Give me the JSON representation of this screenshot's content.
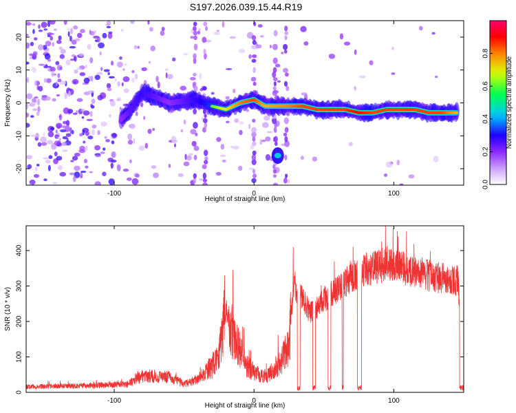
{
  "title": "S197.2026.039.15.44.R19",
  "colorbar": {
    "label": "Normalized spectral amplitude",
    "ticks": [
      0.0,
      0.2,
      0.4,
      0.6,
      0.8
    ],
    "tick_labels": [
      "0.0",
      "0.2",
      "0.4",
      "0.6",
      "0.8"
    ],
    "colors": [
      "#ffffff",
      "#cc99ff",
      "#8800ff",
      "#0000ff",
      "#00ffff",
      "#00ff00",
      "#ffff00",
      "#ff8800",
      "#ff0000",
      "#ff0066"
    ]
  },
  "chart_data": [
    {
      "type": "heatmap",
      "name": "spectrogram",
      "xlabel": "Height of straight line (km)",
      "ylabel": "Frequency (Hz)",
      "xlim": [
        -163,
        150
      ],
      "ylim": [
        -25,
        25
      ],
      "xticks": [
        -100,
        0,
        100
      ],
      "xtick_labels": [
        "-100",
        "0",
        "100"
      ],
      "yticks": [
        -20,
        -10,
        0,
        10,
        20
      ],
      "ytick_labels": [
        "-20",
        "-10",
        "0",
        "10",
        "20"
      ],
      "ridge": {
        "description": "dominant frequency trace (approx.)",
        "x": [
          -95,
          -88,
          -80,
          -72,
          -60,
          -42,
          -30,
          -20,
          -10,
          0,
          8,
          25,
          35,
          45,
          55,
          65,
          75,
          85,
          95,
          105,
          115,
          125,
          135,
          145
        ],
        "freq": [
          -5,
          -2,
          3,
          2,
          0,
          1,
          -1,
          -2,
          0,
          1,
          -1,
          -1,
          -1,
          -2,
          -2,
          -2,
          -3,
          -3,
          -2,
          -2,
          -2,
          -3,
          -3,
          -3
        ],
        "amplitude": [
          0.35,
          0.45,
          0.5,
          0.45,
          0.35,
          0.5,
          0.6,
          0.7,
          0.8,
          0.85,
          0.75,
          0.8,
          0.85,
          0.85,
          0.85,
          0.85,
          0.9,
          0.85,
          0.85,
          0.85,
          0.85,
          0.85,
          0.85,
          0.75
        ]
      },
      "vertical_streaks_x": [
        -42,
        -35,
        0,
        15,
        23
      ],
      "lower_blob": {
        "x": 17,
        "freq": -16,
        "amplitude": 0.45
      }
    },
    {
      "type": "line",
      "name": "snr",
      "xlabel": "Height of straight line (km)",
      "ylabel": "SNR (10 * v/v)",
      "xlim": [
        -163,
        150
      ],
      "ylim": [
        0,
        470
      ],
      "xticks": [
        -100,
        0,
        100
      ],
      "xtick_labels": [
        "-100",
        "0",
        "100"
      ],
      "yticks": [
        0,
        100,
        200,
        300,
        400
      ],
      "ytick_labels": [
        "0",
        "100",
        "200",
        "300",
        "400"
      ],
      "color": "#ee3333",
      "baseline": {
        "x": [
          -163,
          -120,
          -90,
          -80,
          -60,
          -50,
          -40,
          -30,
          -25,
          -20,
          -15,
          -10,
          -5,
          0,
          5,
          10,
          15,
          20,
          25,
          28,
          35,
          40,
          50,
          60,
          70,
          80,
          90,
          95,
          100,
          110,
          120,
          130,
          140,
          146,
          150
        ],
        "y": [
          15,
          18,
          22,
          45,
          40,
          22,
          35,
          70,
          110,
          230,
          150,
          110,
          75,
          55,
          45,
          45,
          65,
          90,
          120,
          300,
          260,
          220,
          255,
          290,
          320,
          340,
          350,
          360,
          355,
          340,
          330,
          320,
          315,
          310,
          20
        ]
      },
      "dropouts": [
        {
          "x0": 31,
          "x1": 33
        },
        {
          "x0": 42,
          "x1": 44
        },
        {
          "x0": 53,
          "x1": 55
        },
        {
          "x0": 63,
          "x1": 64
        },
        {
          "x0": 74,
          "x1": 77
        },
        {
          "x0": 147,
          "x1": 150
        }
      ],
      "spikes": [
        {
          "x": -21,
          "y": 330
        },
        {
          "x": -15,
          "y": 345
        },
        {
          "x": 28,
          "y": 410
        },
        {
          "x": 94,
          "y": 470
        },
        {
          "x": 103,
          "y": 440
        },
        {
          "x": 109,
          "y": 455
        }
      ]
    }
  ]
}
